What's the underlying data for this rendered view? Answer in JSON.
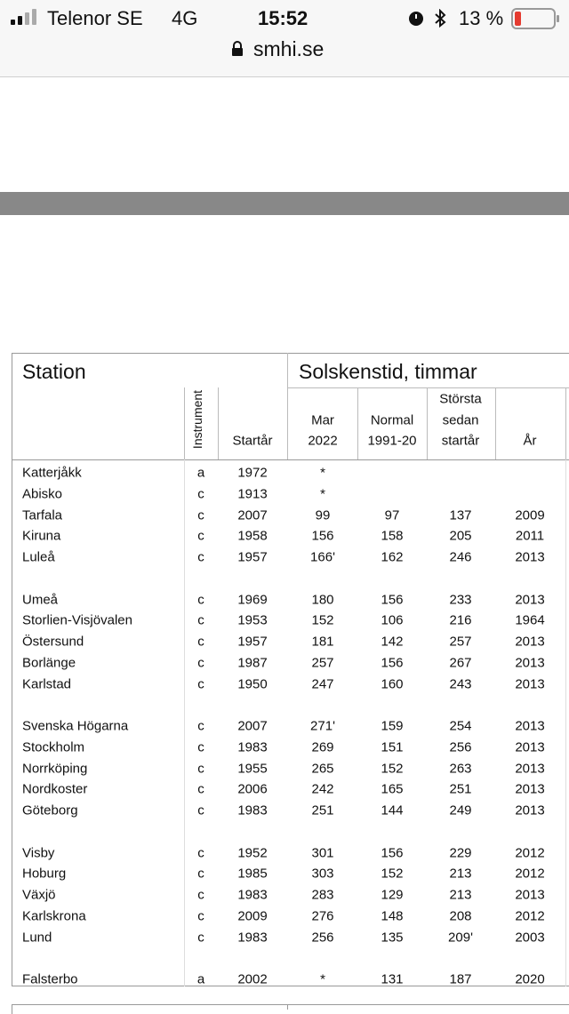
{
  "status_bar": {
    "carrier": "Telenor SE",
    "network": "4G",
    "time": "15:52",
    "battery": "13 %"
  },
  "url": "smhi.se",
  "table": {
    "station_header": "Station",
    "group_header": "Solskenstid, timmar",
    "instrument_header": "Instrument",
    "columns": [
      [
        "Startår"
      ],
      [
        "Mar",
        "2022"
      ],
      [
        "Normal",
        "1991-20"
      ],
      [
        "Största",
        "sedan",
        "startår"
      ],
      [
        "År"
      ]
    ],
    "groups": [
      [
        [
          "Katterjåkk",
          "a",
          "1972",
          "*"
        ],
        [
          "Abisko",
          "c",
          "1913",
          "*"
        ],
        [
          "Tarfala",
          "c",
          "2007",
          "99",
          "97",
          "137",
          "2009"
        ],
        [
          "Kiruna",
          "c",
          "1958",
          "156",
          "158",
          "205",
          "2011"
        ],
        [
          "Luleå",
          "c",
          "1957",
          "166'",
          "162",
          "246",
          "2013"
        ]
      ],
      [
        [
          "Umeå",
          "c",
          "1969",
          "180",
          "156",
          "233",
          "2013"
        ],
        [
          "Storlien-Visjövalen",
          "c",
          "1953",
          "152",
          "106",
          "216",
          "1964"
        ],
        [
          "Östersund",
          "c",
          "1957",
          "181",
          "142",
          "257",
          "2013"
        ],
        [
          "Borlänge",
          "c",
          "1987",
          "257",
          "156",
          "267",
          "2013"
        ],
        [
          "Karlstad",
          "c",
          "1950",
          "247",
          "160",
          "243",
          "2013"
        ]
      ],
      [
        [
          "Svenska Högarna",
          "c",
          "2007",
          "271'",
          "159",
          "254",
          "2013"
        ],
        [
          "Stockholm",
          "c",
          "1983",
          "269",
          "151",
          "256",
          "2013"
        ],
        [
          "Norrköping",
          "c",
          "1955",
          "265",
          "152",
          "263",
          "2013"
        ],
        [
          "Nordkoster",
          "c",
          "2006",
          "242",
          "165",
          "251",
          "2013"
        ],
        [
          "Göteborg",
          "c",
          "1983",
          "251",
          "144",
          "249",
          "2013"
        ]
      ],
      [
        [
          "Visby",
          "c",
          "1952",
          "301",
          "156",
          "229",
          "2012"
        ],
        [
          "Hoburg",
          "c",
          "1985",
          "303",
          "152",
          "213",
          "2012"
        ],
        [
          "Växjö",
          "c",
          "1983",
          "283",
          "129",
          "213",
          "2013"
        ],
        [
          "Karlskrona",
          "c",
          "2009",
          "276",
          "148",
          "208",
          "2012"
        ],
        [
          "Lund",
          "c",
          "1983",
          "256",
          "135",
          "209'",
          "2003"
        ]
      ],
      [
        [
          "Falsterbo",
          "a",
          "2002",
          "*",
          "131",
          "187",
          "2020"
        ]
      ]
    ]
  }
}
